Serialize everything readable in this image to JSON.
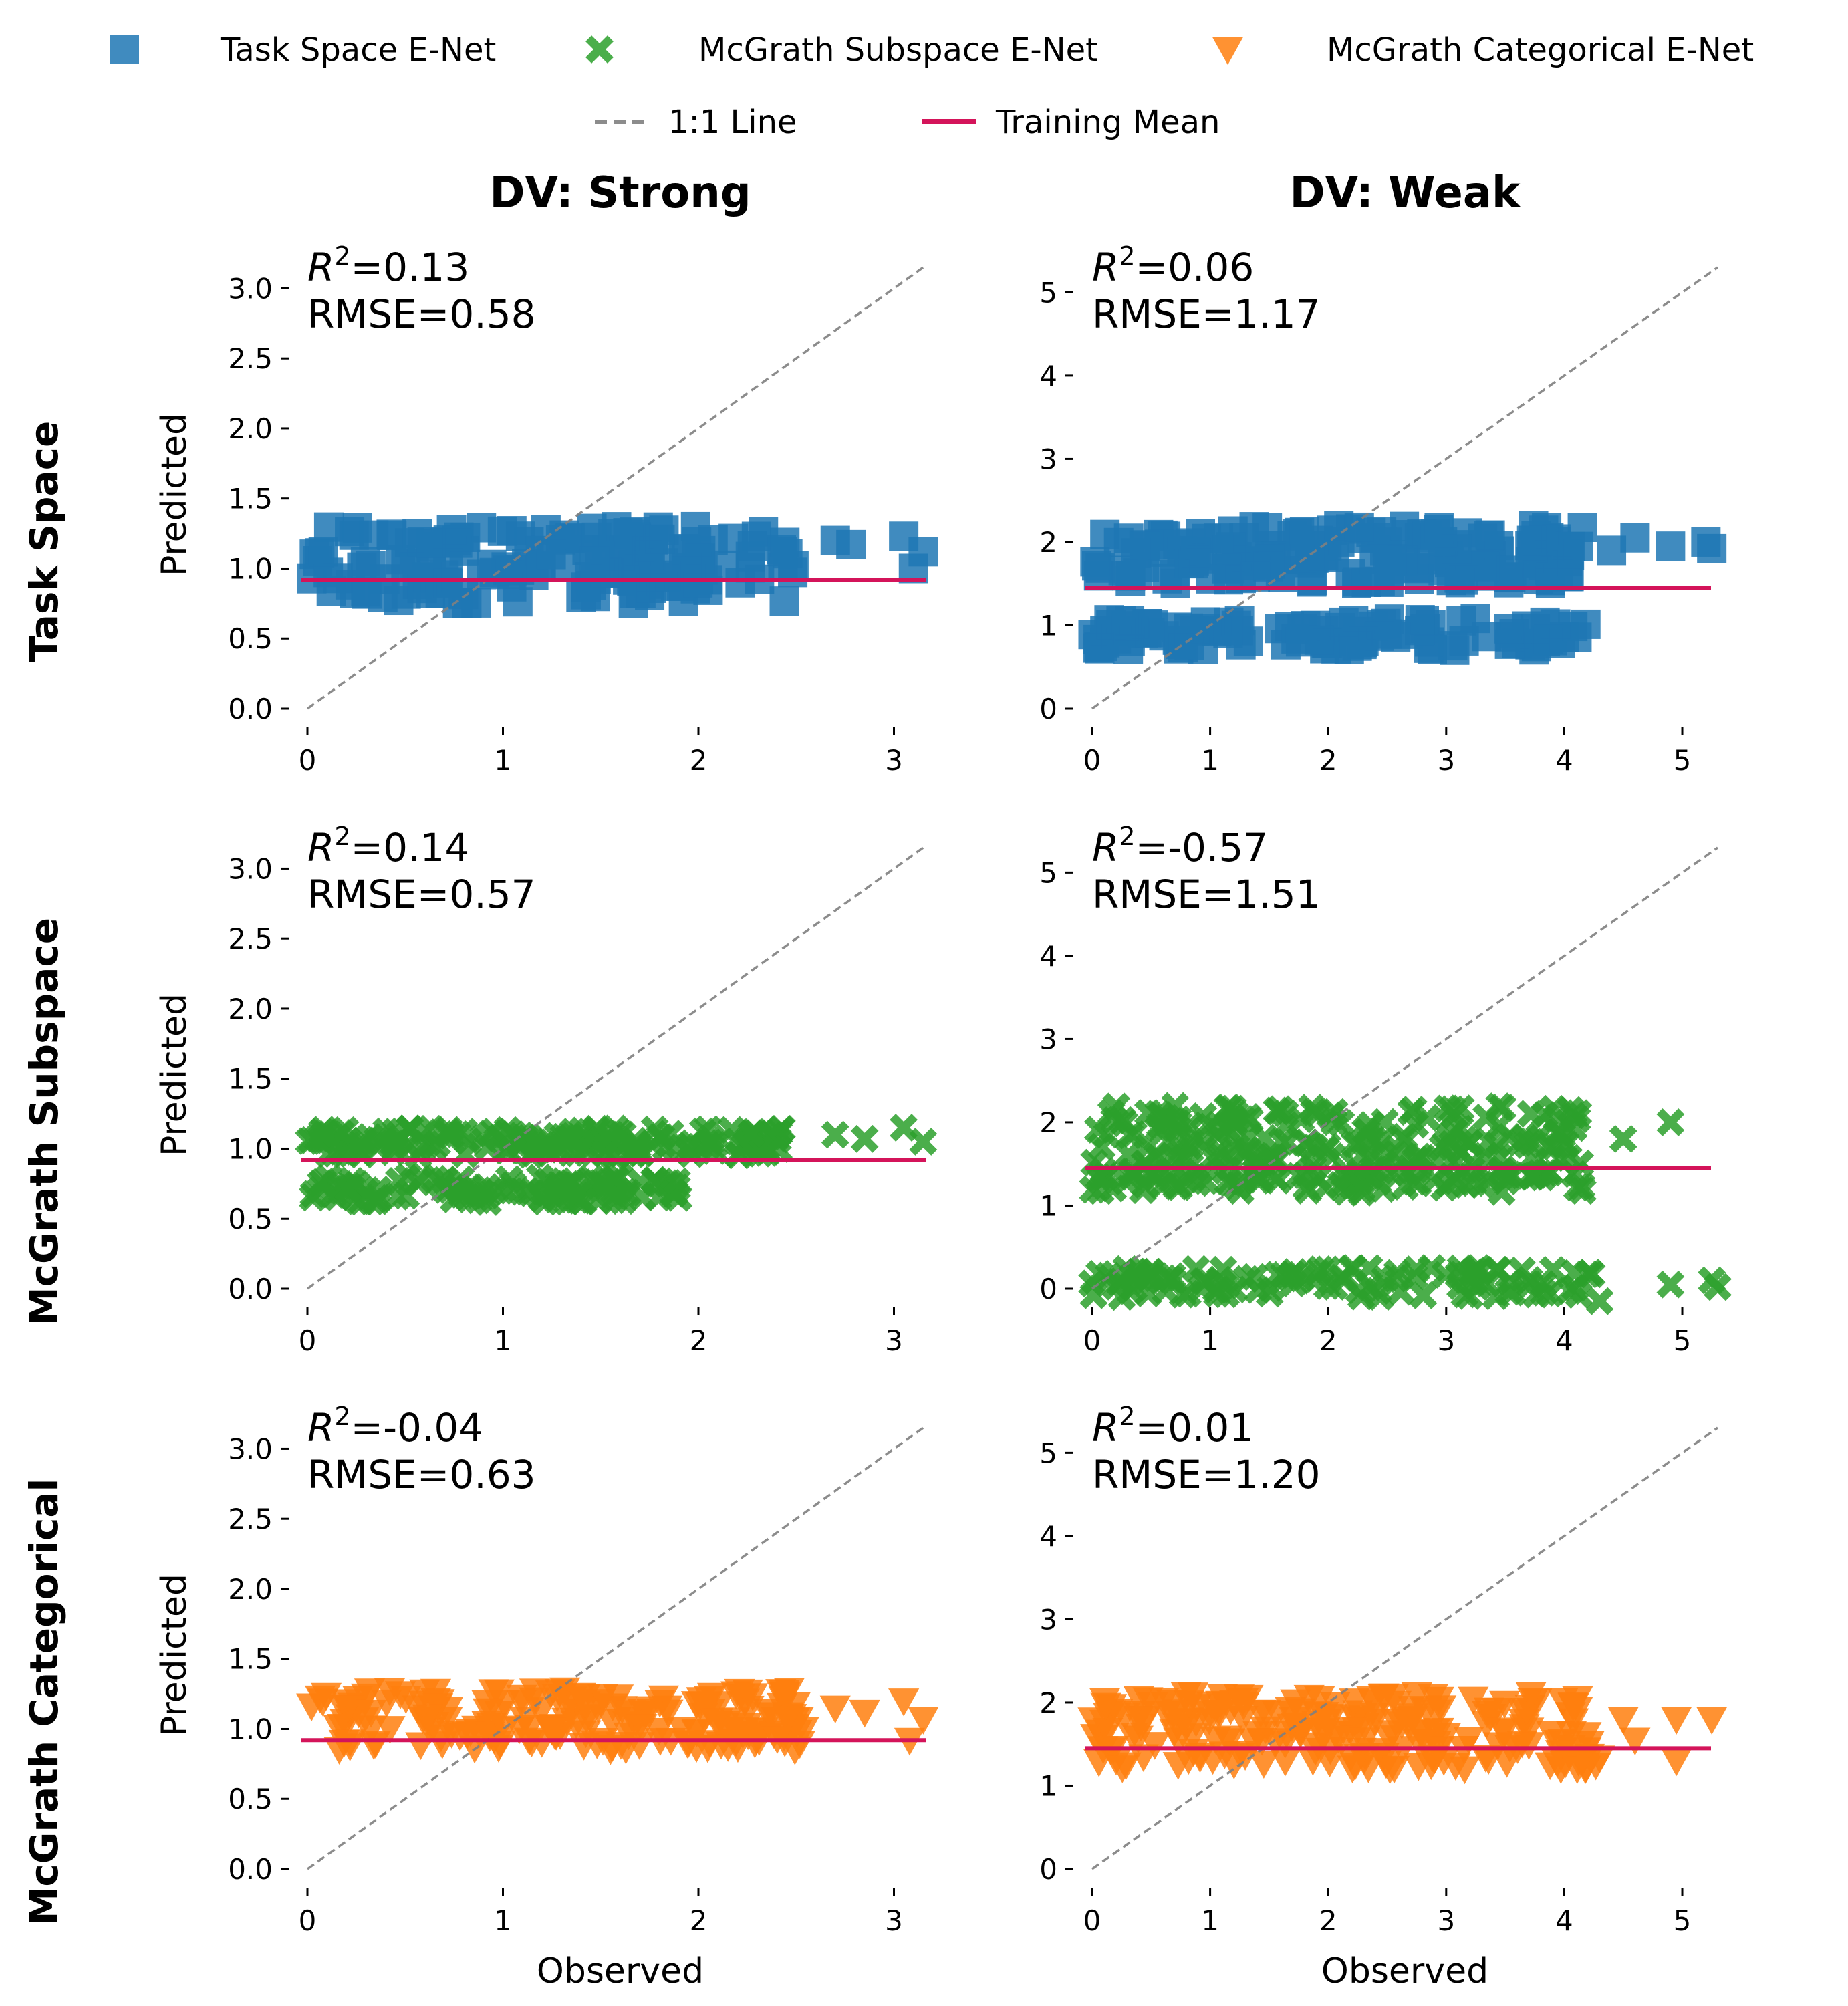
{
  "legend": {
    "items": [
      {
        "label": "Task Space E-Net",
        "marker": "square",
        "color": "#1f77b4"
      },
      {
        "label": "McGrath Subspace E-Net",
        "marker": "x",
        "color": "#2ca02c"
      },
      {
        "label": "McGrath Categorical E-Net",
        "marker": "triangle-down",
        "color": "#ff7f0e"
      },
      {
        "label": "1:1 Line",
        "marker": "dashed-line",
        "color": "#8c8c8c"
      },
      {
        "label": "Training Mean",
        "marker": "solid-line",
        "color": "#d4145a"
      }
    ]
  },
  "columns": [
    "DV: Strong",
    "DV: Weak"
  ],
  "rows": [
    "Task Space",
    "McGrath Subspace",
    "McGrath Categorical"
  ],
  "xlabel": "Observed",
  "ylabel": "Predicted",
  "chart_data": [
    {
      "type": "scatter",
      "row": "Task Space",
      "column": "DV: Strong",
      "series_name": "Task Space E-Net",
      "marker": "square",
      "color": "#1f77b4",
      "r2_text": "0.13",
      "rmse_text": "RMSE=0.58",
      "training_mean": 0.92,
      "xlim": [
        0,
        3.2
      ],
      "ylim": [
        0,
        3.15
      ],
      "xticks": [
        "0",
        "1",
        "2",
        "3"
      ],
      "yticks": [
        "0.0",
        "0.5",
        "1.0",
        "1.5",
        "2.0",
        "2.5",
        "3.0"
      ],
      "clusters": [
        {
          "x": [
            0,
            2.5
          ],
          "y": [
            0.75,
            1.3
          ],
          "n": 170
        }
      ],
      "points": [
        [
          2.7,
          1.2
        ],
        [
          2.78,
          1.17
        ],
        [
          3.05,
          1.23
        ],
        [
          3.1,
          1.0
        ],
        [
          3.15,
          1.12
        ]
      ]
    },
    {
      "type": "scatter",
      "row": "Task Space",
      "column": "DV: Weak",
      "series_name": "Task Space E-Net",
      "marker": "square",
      "color": "#1f77b4",
      "r2_text": "0.06",
      "rmse_text": "RMSE=1.17",
      "training_mean": 1.45,
      "xlim": [
        0,
        5.3
      ],
      "ylim": [
        0,
        5.3
      ],
      "xticks": [
        "0",
        "1",
        "2",
        "3",
        "4",
        "5"
      ],
      "yticks": [
        "0",
        "1",
        "2",
        "3",
        "4",
        "5"
      ],
      "clusters": [
        {
          "x": [
            0,
            4.2
          ],
          "y": [
            1.5,
            2.2
          ],
          "n": 170
        },
        {
          "x": [
            0,
            4.2
          ],
          "y": [
            0.7,
            1.1
          ],
          "n": 110
        }
      ],
      "points": [
        [
          4.4,
          1.9
        ],
        [
          4.6,
          2.05
        ],
        [
          4.9,
          1.95
        ],
        [
          5.2,
          2.0
        ],
        [
          5.25,
          1.92
        ]
      ]
    },
    {
      "type": "scatter",
      "row": "McGrath Subspace",
      "column": "DV: Strong",
      "series_name": "McGrath Subspace E-Net",
      "marker": "x",
      "color": "#2ca02c",
      "r2_text": "0.14",
      "rmse_text": "RMSE=0.57",
      "training_mean": 0.92,
      "xlim": [
        0,
        3.2
      ],
      "ylim": [
        0,
        3.15
      ],
      "xticks": [
        "0",
        "1",
        "2",
        "3"
      ],
      "yticks": [
        "0.0",
        "0.5",
        "1.0",
        "1.5",
        "2.0",
        "2.5",
        "3.0"
      ],
      "clusters": [
        {
          "x": [
            0,
            2.5
          ],
          "y": [
            0.95,
            1.15
          ],
          "n": 170
        },
        {
          "x": [
            0,
            1.9
          ],
          "y": [
            0.62,
            0.8
          ],
          "n": 110
        }
      ],
      "points": [
        [
          2.7,
          1.1
        ],
        [
          2.85,
          1.07
        ],
        [
          3.05,
          1.15
        ],
        [
          3.15,
          1.05
        ]
      ]
    },
    {
      "type": "scatter",
      "row": "McGrath Subspace",
      "column": "DV: Weak",
      "series_name": "McGrath Subspace E-Net",
      "marker": "x",
      "color": "#2ca02c",
      "r2_text": "-0.57",
      "rmse_text": "RMSE=1.51",
      "training_mean": 1.45,
      "xlim": [
        0,
        5.3
      ],
      "ylim": [
        0,
        5.3
      ],
      "xticks": [
        "0",
        "1",
        "2",
        "3",
        "4",
        "5"
      ],
      "yticks": [
        "0",
        "1",
        "2",
        "3",
        "4",
        "5"
      ],
      "clusters": [
        {
          "x": [
            0,
            4.2
          ],
          "y": [
            1.5,
            2.2
          ],
          "n": 170
        },
        {
          "x": [
            0,
            4.2
          ],
          "y": [
            1.15,
            1.45
          ],
          "n": 100
        },
        {
          "x": [
            0,
            4.3
          ],
          "y": [
            -0.1,
            0.25
          ],
          "n": 110
        }
      ],
      "points": [
        [
          4.5,
          1.8
        ],
        [
          4.9,
          2.0
        ],
        [
          4.9,
          0.05
        ],
        [
          5.25,
          0.1
        ],
        [
          5.3,
          0.02
        ],
        [
          4.3,
          -0.15
        ]
      ]
    },
    {
      "type": "scatter",
      "row": "McGrath Categorical",
      "column": "DV: Strong",
      "series_name": "McGrath Categorical E-Net",
      "marker": "triangle-down",
      "color": "#ff7f0e",
      "r2_text": "-0.04",
      "rmse_text": "RMSE=0.63",
      "training_mean": 0.92,
      "xlim": [
        0,
        3.2
      ],
      "ylim": [
        0,
        3.15
      ],
      "xticks": [
        "0",
        "1",
        "2",
        "3"
      ],
      "yticks": [
        "0.0",
        "0.5",
        "1.0",
        "1.5",
        "2.0",
        "2.5",
        "3.0"
      ],
      "clusters": [
        {
          "x": [
            0,
            2.55
          ],
          "y": [
            0.85,
            1.28
          ],
          "n": 200
        }
      ],
      "points": [
        [
          2.7,
          1.15
        ],
        [
          2.85,
          1.12
        ],
        [
          3.05,
          1.2
        ],
        [
          3.08,
          0.92
        ],
        [
          3.15,
          1.07
        ]
      ]
    },
    {
      "type": "scatter",
      "row": "McGrath Categorical",
      "column": "DV: Weak",
      "series_name": "McGrath Categorical E-Net",
      "marker": "triangle-down",
      "color": "#ff7f0e",
      "r2_text": "0.01",
      "rmse_text": "RMSE=1.20",
      "training_mean": 1.45,
      "xlim": [
        0,
        5.3
      ],
      "ylim": [
        0,
        5.3
      ],
      "xticks": [
        "0",
        "1",
        "2",
        "3",
        "4",
        "5"
      ],
      "yticks": [
        "0",
        "1",
        "2",
        "3",
        "4",
        "5"
      ],
      "clusters": [
        {
          "x": [
            0,
            4.3
          ],
          "y": [
            1.2,
            2.1
          ],
          "n": 230
        }
      ],
      "points": [
        [
          4.5,
          1.8
        ],
        [
          4.6,
          1.55
        ],
        [
          4.95,
          1.8
        ],
        [
          4.95,
          1.3
        ],
        [
          5.25,
          1.8
        ]
      ]
    }
  ]
}
